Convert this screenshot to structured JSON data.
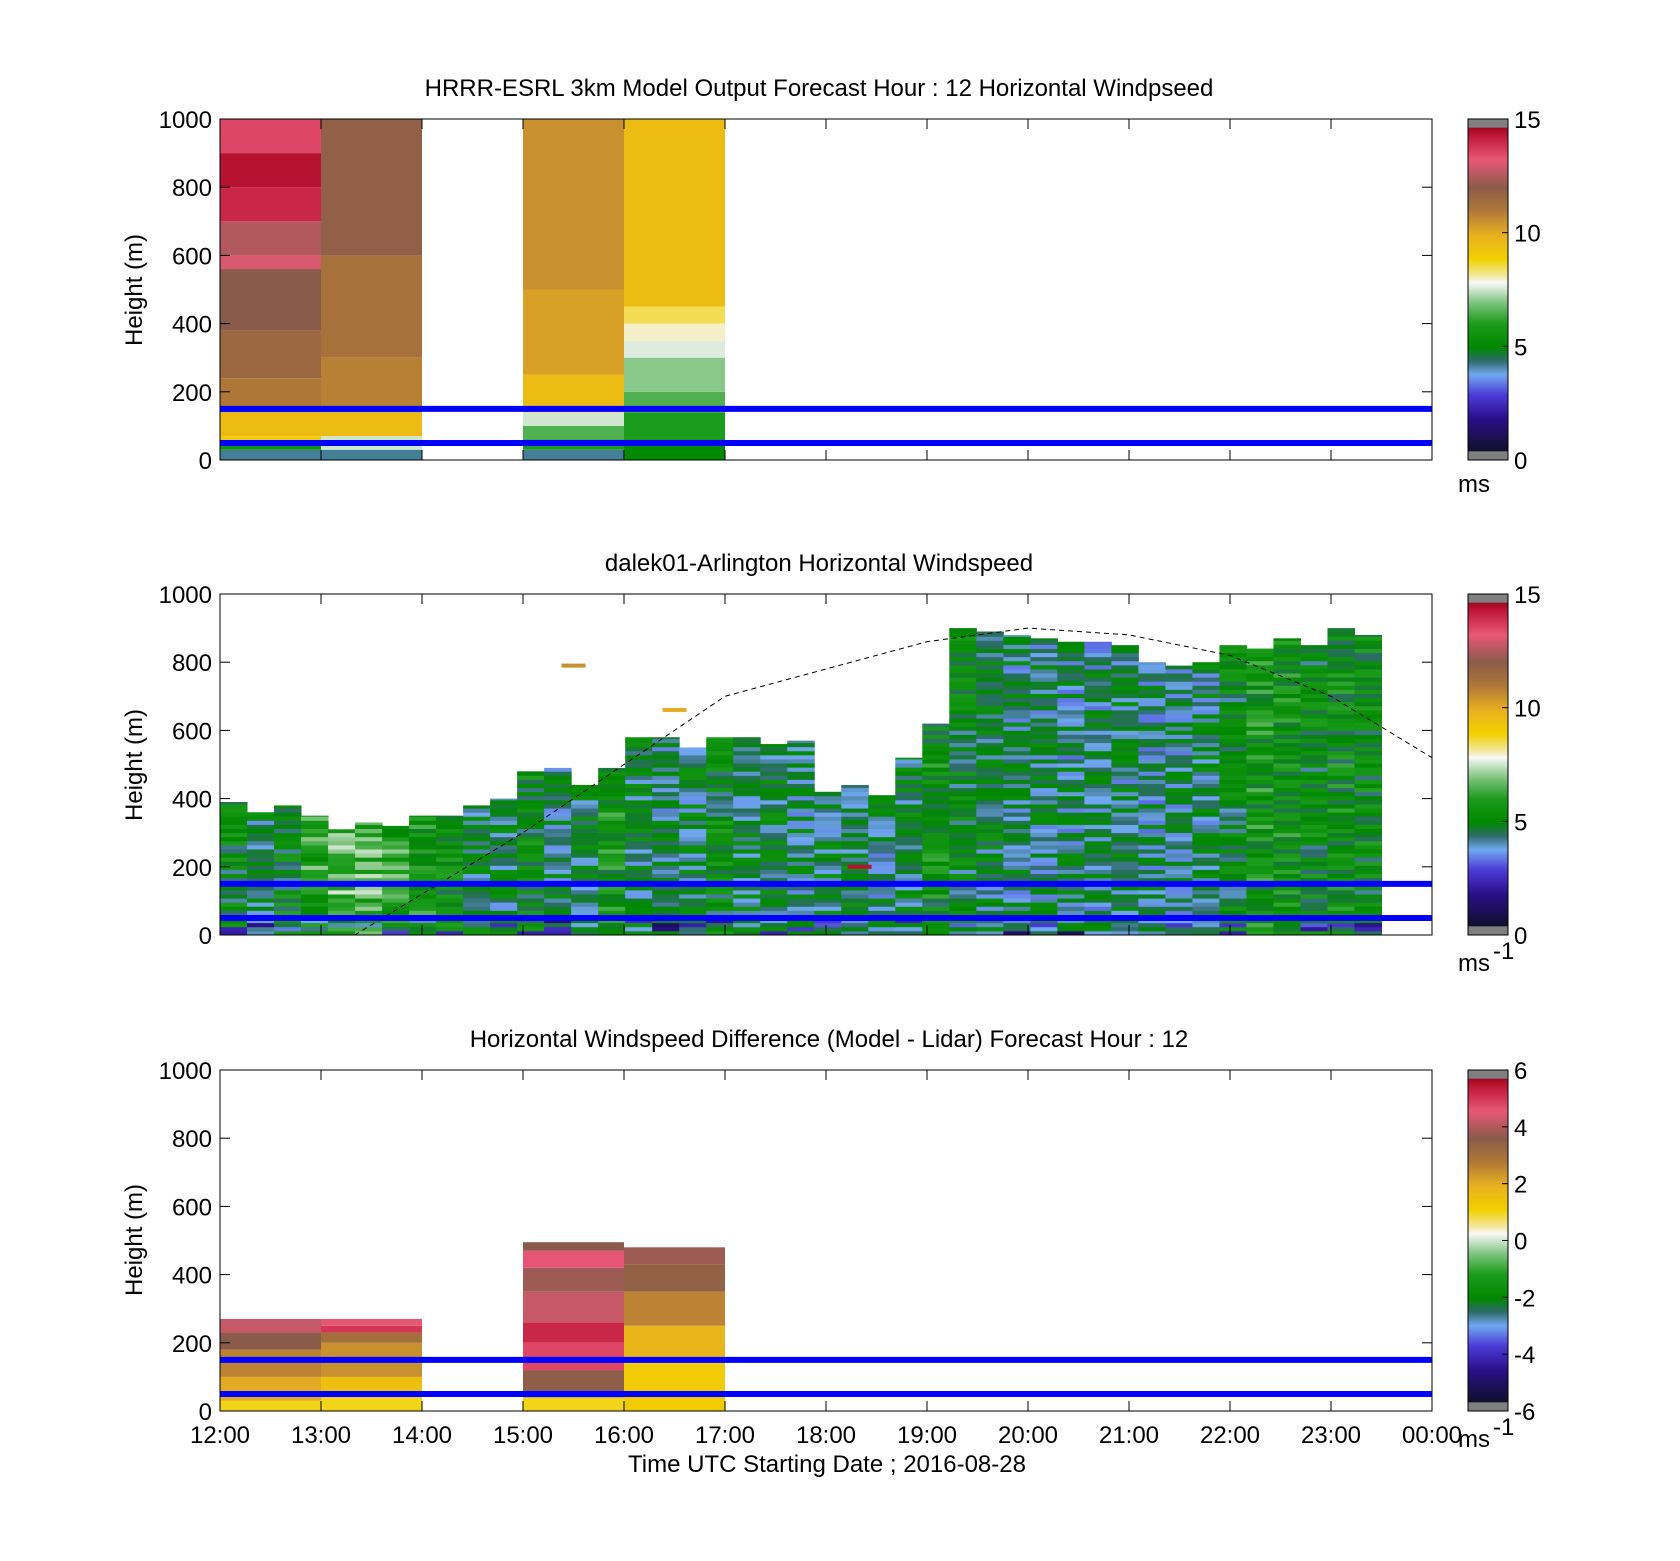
{
  "x_tick_labels": [
    "12:00",
    "13:00",
    "14:00",
    "15:00",
    "16:00",
    "17:00",
    "18:00",
    "19:00",
    "20:00",
    "21:00",
    "22:00",
    "23:00",
    "00:00"
  ],
  "xlabel": "Time UTC  Starting Date ; 2016-08-28",
  "colors": {
    "guide_lines": "#0000ff",
    "frame": "#000000"
  },
  "chart_data": [
    {
      "type": "heatmap",
      "title": "HRRR-ESRL 3km Model Output   Forecast Hour : 12 Horizontal Windpseed",
      "ylabel": "Height (m)",
      "ylim": [
        0,
        1000
      ],
      "yticks": [
        "0",
        "200",
        "400",
        "600",
        "800",
        "1000"
      ],
      "xlim": [
        "12:00",
        "00:00"
      ],
      "colorbar": {
        "min": 0,
        "max": 15,
        "ticks": [
          "0",
          "5",
          "10",
          "15"
        ],
        "unit": "ms"
      },
      "guide_lines_m": [
        50,
        150
      ],
      "columns": [
        {
          "start": "12:00",
          "end": "13:00",
          "layers": [
            [
              0,
              30,
              4.0
            ],
            [
              30,
              50,
              5.5
            ],
            [
              50,
              70,
              9.0
            ],
            [
              70,
              140,
              9.5
            ],
            [
              140,
              240,
              11.0
            ],
            [
              240,
              380,
              11.5
            ],
            [
              380,
              560,
              12.0
            ],
            [
              560,
              600,
              13.0
            ],
            [
              600,
              700,
              12.5
            ],
            [
              700,
              800,
              14.0
            ],
            [
              800,
              900,
              14.5
            ],
            [
              900,
              1000,
              13.5
            ]
          ]
        },
        {
          "start": "13:00",
          "end": "14:00",
          "layers": [
            [
              0,
              30,
              4.0
            ],
            [
              30,
              70,
              7.5
            ],
            [
              70,
              140,
              9.5
            ],
            [
              140,
              300,
              10.8
            ],
            [
              300,
              600,
              11.2
            ],
            [
              600,
              1000,
              11.8
            ]
          ]
        },
        {
          "start": "15:00",
          "end": "16:00",
          "layers": [
            [
              0,
              30,
              4.0
            ],
            [
              30,
              60,
              6.0
            ],
            [
              60,
              100,
              6.5
            ],
            [
              100,
              140,
              7.5
            ],
            [
              140,
              250,
              9.5
            ],
            [
              250,
              500,
              10.2
            ],
            [
              500,
              1000,
              10.5
            ]
          ]
        },
        {
          "start": "16:00",
          "end": "17:00",
          "layers": [
            [
              0,
              60,
              5.0
            ],
            [
              60,
              140,
              6.0
            ],
            [
              140,
              200,
              6.5
            ],
            [
              200,
              300,
              7.0
            ],
            [
              300,
              350,
              7.6
            ],
            [
              350,
              400,
              8.0
            ],
            [
              400,
              450,
              8.5
            ],
            [
              450,
              1000,
              9.5
            ]
          ]
        }
      ]
    },
    {
      "type": "heatmap",
      "title": "dalek01-Arlington  Horizontal Windspeed",
      "ylabel": "Height (m)",
      "ylim": [
        0,
        1000
      ],
      "yticks": [
        "0",
        "200",
        "400",
        "600",
        "800",
        "1000"
      ],
      "xlim": [
        "12:00",
        "00:00"
      ],
      "colorbar": {
        "min": 0,
        "max": 15,
        "ticks": [
          "0",
          "5",
          "10",
          "15"
        ],
        "unit": "ms",
        "unit_exp": "-1"
      },
      "guide_lines_m": [
        50,
        150
      ],
      "column_top_m": [
        390,
        360,
        380,
        350,
        310,
        330,
        320,
        350,
        350,
        380,
        400,
        480,
        490,
        440,
        490,
        580,
        580,
        550,
        580,
        580,
        560,
        570,
        420,
        440,
        410,
        520,
        620,
        900,
        890,
        880,
        870,
        860,
        860,
        850,
        800,
        790,
        800,
        850,
        840,
        870,
        850,
        900,
        880
      ],
      "column_mean_ms": [
        5.0,
        4.5,
        5.0,
        6.0,
        6.5,
        6.5,
        6.0,
        5.5,
        5.0,
        4.5,
        4.5,
        5.0,
        4.3,
        4.5,
        5.5,
        4.5,
        4.3,
        4.5,
        5.0,
        4.5,
        4.5,
        4.3,
        4.5,
        4.5,
        4.3,
        4.5,
        5.2,
        4.8,
        4.5,
        4.3,
        4.3,
        4.2,
        4.2,
        4.3,
        4.2,
        4.3,
        4.4,
        4.8,
        5.5,
        5.5,
        5.0,
        5.2,
        5.0
      ],
      "dashed_curve": {
        "x": [
          "13:20",
          "15:00",
          "17:00",
          "19:00",
          "20:00",
          "21:00",
          "22:00",
          "23:00",
          "00:00"
        ],
        "y": [
          0,
          300,
          700,
          860,
          900,
          880,
          820,
          700,
          520
        ]
      },
      "sparse_marks": [
        {
          "x": "15:30",
          "y": 790,
          "value": 10.5
        },
        {
          "x": "16:30",
          "y": 660,
          "value": 10.0
        },
        {
          "x": "18:20",
          "y": 200,
          "value": 14.5
        }
      ]
    },
    {
      "type": "heatmap",
      "title": "Horizontal Windspeed Difference (Model - Lidar) Forecast Hour : 12",
      "ylabel": "Height (m)",
      "ylim": [
        0,
        1000
      ],
      "yticks": [
        "0",
        "200",
        "400",
        "600",
        "800",
        "1000"
      ],
      "xlim": [
        "12:00",
        "00:00"
      ],
      "colorbar": {
        "min": -6,
        "max": 6,
        "ticks": [
          "-6",
          "-4",
          "-2",
          "0",
          "2",
          "4",
          "6"
        ],
        "unit": "ms",
        "unit_exp": "-1"
      },
      "guide_lines_m": [
        50,
        150
      ],
      "columns": [
        {
          "start": "12:00",
          "end": "13:00",
          "layers": [
            [
              0,
              30,
              1.0
            ],
            [
              30,
              100,
              2.0
            ],
            [
              100,
              180,
              2.6
            ],
            [
              180,
              230,
              3.6
            ],
            [
              230,
              270,
              4.2
            ]
          ]
        },
        {
          "start": "13:00",
          "end": "14:00",
          "layers": [
            [
              0,
              40,
              1.0
            ],
            [
              40,
              100,
              1.5
            ],
            [
              100,
              200,
              2.4
            ],
            [
              200,
              230,
              3.0
            ],
            [
              230,
              250,
              5.0
            ],
            [
              250,
              270,
              4.5
            ]
          ]
        },
        {
          "start": "15:00",
          "end": "16:00",
          "layers": [
            [
              0,
              40,
              1.0
            ],
            [
              40,
              120,
              3.5
            ],
            [
              120,
              200,
              4.8
            ],
            [
              200,
              260,
              5.2
            ],
            [
              260,
              350,
              4.2
            ],
            [
              350,
              420,
              3.8
            ],
            [
              420,
              470,
              4.6
            ],
            [
              470,
              495,
              3.6
            ]
          ]
        },
        {
          "start": "16:00",
          "end": "17:00",
          "layers": [
            [
              0,
              140,
              1.2
            ],
            [
              140,
              250,
              1.8
            ],
            [
              250,
              350,
              2.6
            ],
            [
              350,
              430,
              3.4
            ],
            [
              430,
              480,
              3.8
            ]
          ]
        }
      ]
    }
  ]
}
